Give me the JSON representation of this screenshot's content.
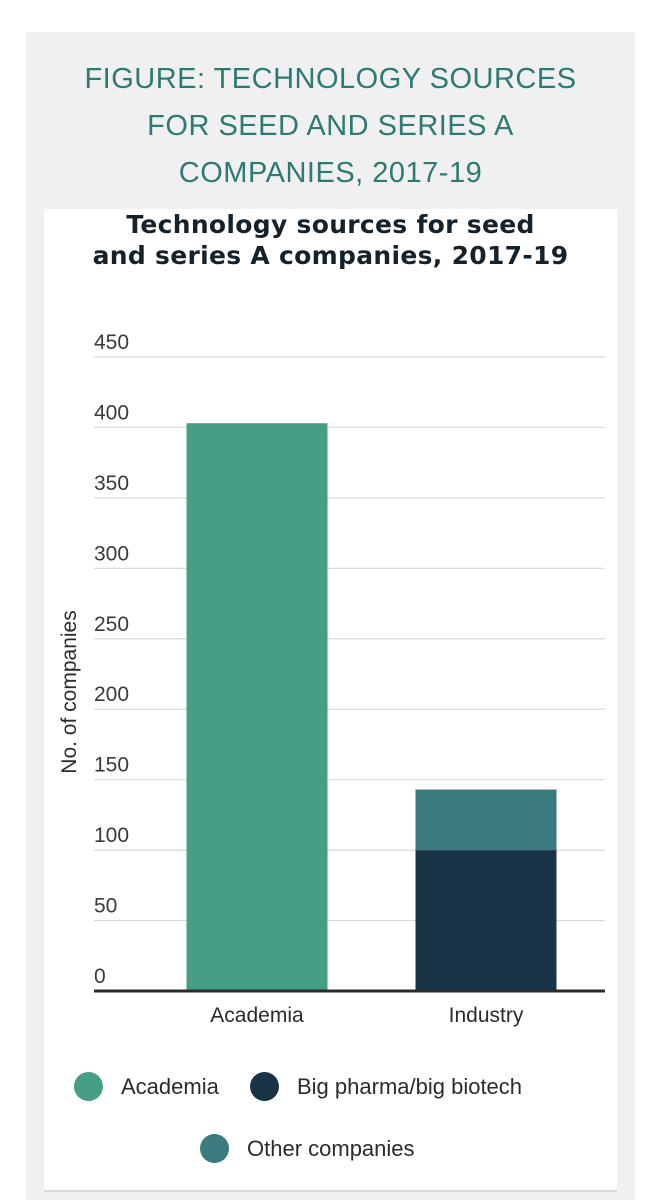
{
  "figure_heading": {
    "line1": "FIGURE: TECHNOLOGY SOURCES",
    "line2": "FOR SEED AND SERIES A",
    "line3": "COMPANIES, 2017-19"
  },
  "chart_title": {
    "line1": "Technology sources for seed",
    "line2": "and series A companies, 2017-19"
  },
  "colors": {
    "heading": "#2e7a72",
    "academia": "#469e84",
    "big_pharma": "#183446",
    "other_companies": "#3b7a7e",
    "grid": "#d9d9d9",
    "axis": "#2b2b2b"
  },
  "chart_data": {
    "type": "bar",
    "stacked": true,
    "title": "Technology sources for seed and series A companies, 2017-19",
    "xlabel": "",
    "ylabel": "No. of companies",
    "ylim": [
      0,
      450
    ],
    "yticks": [
      "0",
      "50",
      "100",
      "150",
      "200",
      "250",
      "300",
      "350",
      "400",
      "450"
    ],
    "categories": [
      "Academia",
      "Industry"
    ],
    "grid": true,
    "legend_position": "bottom",
    "series": [
      {
        "name": "Academia",
        "values": [
          403,
          0
        ],
        "color": "#469e84"
      },
      {
        "name": "Big pharma/big biotech",
        "values": [
          0,
          100
        ],
        "color": "#183446"
      },
      {
        "name": "Other companies",
        "values": [
          0,
          43
        ],
        "color": "#3b7a7e"
      }
    ]
  }
}
